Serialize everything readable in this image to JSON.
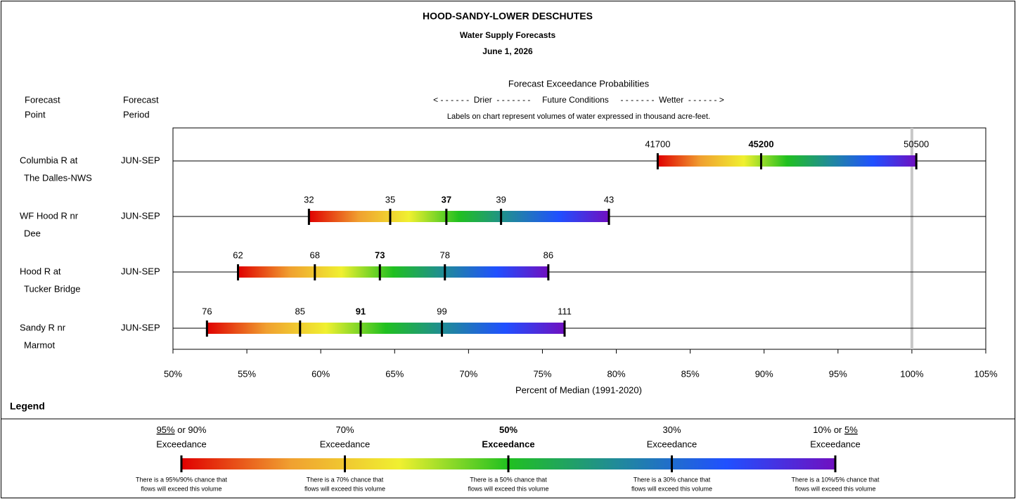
{
  "chart_data": {
    "type": "exceedance",
    "title": "HOOD-SANDY-LOWER DESCHUTES",
    "subtitle": "Water Supply Forecasts",
    "date": "June 1, 2026",
    "chart_heading": "Forecast Exceedance Probabilities",
    "direction_line": "< - - - - - -  Drier  - - - - - - -     Future Conditions     - - - - - - -  Wetter  - - - - - - >",
    "units_note": "Labels on chart represent volumes of water expressed in thousand acre-feet.",
    "col_point": [
      "Forecast",
      "Point"
    ],
    "col_period": [
      "Forecast",
      "Period"
    ],
    "x_label": "Percent of Median (1991-2020)",
    "xlim": [
      50,
      105
    ],
    "xticks": [
      {
        "value": 50,
        "label": "50%"
      },
      {
        "value": 55,
        "label": "55%"
      },
      {
        "value": 60,
        "label": "60%"
      },
      {
        "value": 65,
        "label": "65%"
      },
      {
        "value": 70,
        "label": "70%"
      },
      {
        "value": 75,
        "label": "75%"
      },
      {
        "value": 80,
        "label": "80%"
      },
      {
        "value": 85,
        "label": "85%"
      },
      {
        "value": 90,
        "label": "90%"
      },
      {
        "value": 95,
        "label": "95%"
      },
      {
        "value": 100,
        "label": "100%"
      },
      {
        "value": 105,
        "label": "105%"
      }
    ],
    "median_line": 100,
    "gradient": [
      "#e00000",
      "#f0a030",
      "#f0f030",
      "#20c020",
      "#208a9a",
      "#2050ff",
      "#7010c0"
    ],
    "rows": [
      {
        "name": [
          "Columbia R at",
          "The Dalles-NWS"
        ],
        "period": "JUN-SEP",
        "volumes": [
          41700,
          45200,
          50500
        ],
        "percent_of_median": [
          82.8,
          89.8,
          100.3
        ],
        "emphasis_index": 1
      },
      {
        "name": [
          "WF Hood R nr",
          "Dee"
        ],
        "period": "JUN-SEP",
        "volumes": [
          32,
          35,
          37,
          39,
          43
        ],
        "percent_of_median": [
          59.2,
          64.7,
          68.5,
          72.2,
          79.5
        ],
        "emphasis_index": 2
      },
      {
        "name": [
          "Hood R at",
          "Tucker Bridge"
        ],
        "period": "JUN-SEP",
        "volumes": [
          62,
          68,
          73,
          78,
          86
        ],
        "percent_of_median": [
          54.4,
          59.6,
          64.0,
          68.4,
          75.4
        ],
        "emphasis_index": 2
      },
      {
        "name": [
          "Sandy R nr",
          "Marmot"
        ],
        "period": "JUN-SEP",
        "volumes": [
          76,
          85,
          91,
          99,
          111
        ],
        "percent_of_median": [
          52.3,
          58.6,
          62.7,
          68.2,
          76.5
        ],
        "emphasis_index": 2
      }
    ],
    "legend": {
      "heading": "Legend",
      "items": [
        {
          "title": [
            {
              "text": "95%",
              "underline": true
            },
            {
              "text": " or 90%"
            }
          ],
          "subtitle": "Exceedance",
          "note": [
            "There is a 95%/90% chance that",
            "flows will exceed this volume"
          ]
        },
        {
          "title": [
            {
              "text": "70%"
            }
          ],
          "subtitle": "Exceedance",
          "note": [
            "There is a 70% chance that",
            "flows will exceed this volume"
          ]
        },
        {
          "title": [
            {
              "text": "50%"
            }
          ],
          "subtitle": "Exceedance",
          "bold": true,
          "note": [
            "There is a 50% chance that",
            "flows will exceed this volume"
          ]
        },
        {
          "title": [
            {
              "text": "30%"
            }
          ],
          "subtitle": "Exceedance",
          "note": [
            "There is a 30% chance that",
            "flows will exceed this volume"
          ]
        },
        {
          "title": [
            {
              "text": "10% or "
            },
            {
              "text": "5%",
              "underline": true
            }
          ],
          "subtitle": "Exceedance",
          "note": [
            "There is a 10%/5% chance that",
            "flows will exceed this volume"
          ]
        }
      ]
    }
  }
}
